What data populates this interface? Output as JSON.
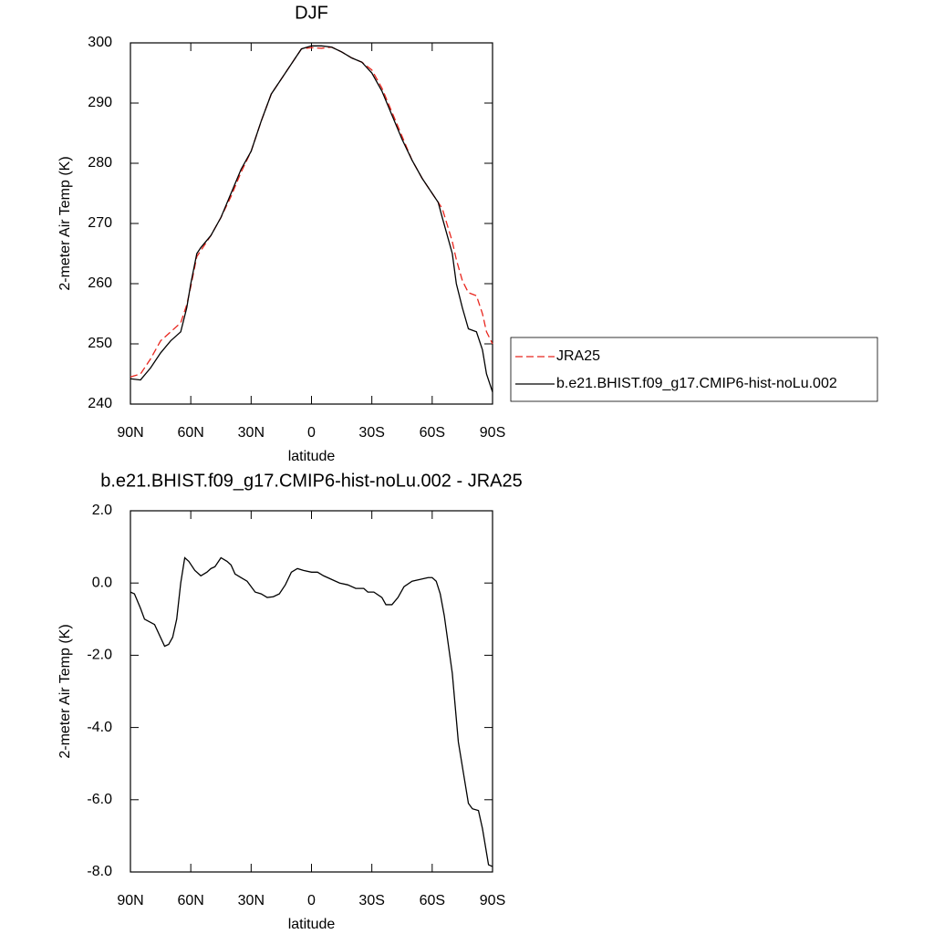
{
  "chart_data": [
    {
      "type": "line",
      "title": "DJF",
      "xlabel": "latitude",
      "ylabel": "2-meter Air Temp (K)",
      "xlim": [
        90,
        -90
      ],
      "xticks": [
        {
          "value": 90,
          "label": "90N"
        },
        {
          "value": 60,
          "label": "60N"
        },
        {
          "value": 30,
          "label": "30N"
        },
        0,
        {
          "value": -30,
          "label": "30S"
        },
        {
          "value": -60,
          "label": "60S"
        },
        {
          "value": -90,
          "label": "90S"
        }
      ],
      "ylim": [
        240,
        300
      ],
      "yticks": [
        240,
        250,
        260,
        270,
        280,
        290,
        300
      ],
      "legend": "right",
      "x": [
        90,
        85,
        80,
        75,
        70,
        65,
        62,
        60,
        57,
        55,
        50,
        45,
        40,
        35,
        30,
        25,
        20,
        15,
        10,
        5,
        0,
        -5,
        -10,
        -15,
        -20,
        -25,
        -30,
        -35,
        -40,
        -45,
        -50,
        -55,
        -60,
        -63,
        -65,
        -70,
        -72,
        -75,
        -78,
        -82,
        -85,
        -87,
        -90
      ],
      "series": [
        {
          "name": "JRA25",
          "color": "#e8261e",
          "line_style": "dashed",
          "values": [
            244.5,
            245,
            247.5,
            250.5,
            252,
            253.5,
            256.5,
            259.5,
            264.5,
            265.5,
            268,
            271,
            274.5,
            278.5,
            282,
            287,
            291.5,
            294,
            296.5,
            299,
            299.2,
            299.1,
            299.3,
            298.5,
            297.5,
            296.8,
            295.5,
            292.5,
            288.5,
            284.5,
            280.5,
            277.5,
            275,
            273.5,
            272.5,
            267,
            264,
            260.5,
            258.5,
            258,
            255,
            252,
            250
          ]
        },
        {
          "name": "b.e21.BHIST.f09_g17.CMIP6-hist-noLu.002",
          "color": "#000000",
          "line_style": "solid",
          "values": [
            244.2,
            244,
            246,
            248.5,
            250.5,
            252,
            256,
            260,
            265,
            266,
            268,
            271,
            275,
            279,
            282,
            287,
            291.5,
            294,
            296.5,
            299,
            299.5,
            299.5,
            299.3,
            298.5,
            297.5,
            296.8,
            295,
            292,
            288,
            284,
            280.5,
            277.5,
            275,
            273.5,
            271,
            265,
            260,
            256,
            252.5,
            252,
            249,
            245,
            242
          ]
        }
      ]
    },
    {
      "type": "line",
      "title": "b.e21.BHIST.f09_g17.CMIP6-hist-noLu.002 - JRA25",
      "xlabel": "latitude",
      "ylabel": "2-meter Air Temp (K)",
      "xlim": [
        90,
        -90
      ],
      "xticks": [
        {
          "value": 90,
          "label": "90N"
        },
        {
          "value": 60,
          "label": "60N"
        },
        {
          "value": 30,
          "label": "30N"
        },
        0,
        {
          "value": -30,
          "label": "30S"
        },
        {
          "value": -60,
          "label": "60S"
        },
        {
          "value": -90,
          "label": "90S"
        }
      ],
      "ylim": [
        -8,
        2
      ],
      "yticks": [
        {
          "value": -8,
          "label": "-8.0"
        },
        {
          "value": -6,
          "label": "-6.0"
        },
        {
          "value": -4,
          "label": "-4.0"
        },
        {
          "value": -2,
          "label": "-2.0"
        },
        {
          "value": 0,
          "label": "0.0"
        },
        {
          "value": 2,
          "label": "2.0"
        }
      ],
      "x": [
        90,
        88,
        85,
        83,
        78,
        73,
        71,
        69,
        67,
        65,
        63,
        61,
        58,
        55,
        52,
        50,
        48,
        45,
        42,
        40,
        38,
        35,
        32,
        28,
        25,
        22,
        19,
        16,
        13,
        10,
        7,
        4,
        0,
        -3,
        -6,
        -10,
        -14,
        -18,
        -22,
        -26,
        -28,
        -31,
        -35,
        -37,
        -40,
        -43,
        -46,
        -50,
        -54,
        -58,
        -60,
        -62,
        -64,
        -66,
        -70,
        -73,
        -78,
        -80,
        -83,
        -85,
        -88,
        -90
      ],
      "series": [
        {
          "color": "#000000",
          "line_style": "solid",
          "values": [
            -0.25,
            -0.3,
            -0.7,
            -1,
            -1.15,
            -1.75,
            -1.7,
            -1.5,
            -1,
            0,
            0.7,
            0.6,
            0.35,
            0.2,
            0.3,
            0.4,
            0.45,
            0.7,
            0.6,
            0.5,
            0.25,
            0.15,
            0.05,
            -0.25,
            -0.3,
            -0.4,
            -0.38,
            -0.3,
            -0.05,
            0.3,
            0.4,
            0.35,
            0.3,
            0.3,
            0.2,
            0.1,
            0,
            -0.05,
            -0.15,
            -0.15,
            -0.25,
            -0.25,
            -0.4,
            -0.6,
            -0.6,
            -0.4,
            -0.1,
            0.05,
            0.1,
            0.15,
            0.15,
            0.05,
            -0.3,
            -0.9,
            -2.5,
            -4.4,
            -6.1,
            -6.25,
            -6.3,
            -6.8,
            -7.8,
            -7.85
          ]
        }
      ]
    }
  ]
}
